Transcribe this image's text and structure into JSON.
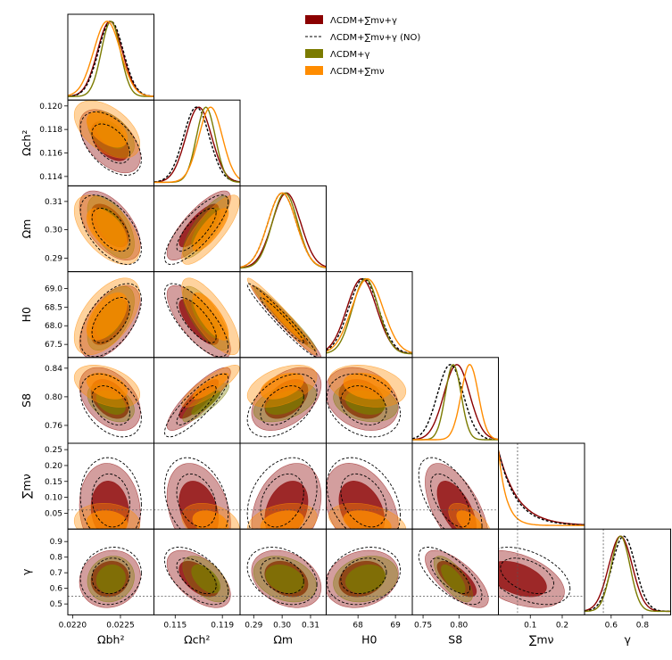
{
  "chart_data": {
    "type": "corner_plot",
    "title": "",
    "parameters": [
      {
        "id": "obh2",
        "label": "Ωbh²",
        "range": [
          0.02195,
          0.02285
        ],
        "ticks": [
          0.022,
          0.0225
        ],
        "tick_labels": [
          "0.0220",
          "0.0225"
        ],
        "best": 0.02242
      },
      {
        "id": "och2",
        "label": "Ωch²",
        "range": [
          0.1132,
          0.1205
        ],
        "ticks": [
          0.114,
          0.116,
          0.118,
          0.12
        ],
        "tick_labels": [
          "0.114",
          "0.116",
          "0.118",
          "0.120"
        ],
        "xticks": [
          0.115,
          0.119
        ],
        "xtick_labels": [
          "0.115",
          "0.119"
        ],
        "best": 0.1175
      },
      {
        "id": "om",
        "label": "Ωm",
        "range": [
          0.2852,
          0.3155
        ],
        "ticks": [
          0.29,
          0.3,
          0.31
        ],
        "tick_labels": [
          "0.29",
          "0.30",
          "0.31"
        ],
        "best": 0.3005
      },
      {
        "id": "h0",
        "label": "H0",
        "range": [
          67.15,
          69.45
        ],
        "ticks": [
          67.5,
          68.0,
          68.5,
          69.0
        ],
        "tick_labels": [
          "67.5",
          "68.0",
          "68.5",
          "69.0"
        ],
        "xticks": [
          68,
          69
        ],
        "xtick_labels": [
          "68",
          "69"
        ],
        "best": 68.2
      },
      {
        "id": "s8",
        "label": "S8",
        "range": [
          0.735,
          0.855
        ],
        "ticks": [
          0.76,
          0.8,
          0.84
        ],
        "tick_labels": [
          "0.76",
          "0.80",
          "0.84"
        ],
        "xticks": [
          0.75,
          0.8
        ],
        "xtick_labels": [
          "0.75",
          "0.80"
        ],
        "best": 0.795
      },
      {
        "id": "mnu",
        "label": "∑mν",
        "range": [
          0.0,
          0.27
        ],
        "ticks": [
          0.05,
          0.1,
          0.15,
          0.2,
          0.25
        ],
        "tick_labels": [
          "0.05",
          "0.10",
          "0.15",
          "0.20",
          "0.25"
        ],
        "xticks": [
          0.1,
          0.2
        ],
        "xtick_labels": [
          "0.1",
          "0.2"
        ],
        "best": 0.06,
        "ref_line": 0.06
      },
      {
        "id": "gamma",
        "label": "γ",
        "range": [
          0.43,
          0.98
        ],
        "ticks": [
          0.5,
          0.6,
          0.7,
          0.8,
          0.9
        ],
        "tick_labels": [
          "0.5",
          "0.6",
          "0.7",
          "0.8",
          "0.9"
        ],
        "xticks": [
          0.6,
          0.8
        ],
        "xtick_labels": [
          "0.6",
          "0.8"
        ],
        "best": 0.66,
        "ref_line": 0.55
      }
    ],
    "series": [
      {
        "id": "full",
        "name": "ΛCDM+∑mν+γ",
        "color": "#8b0000",
        "style": "filled",
        "params": [
          "obh2",
          "och2",
          "om",
          "h0",
          "s8",
          "mnu",
          "gamma"
        ],
        "mean": [
          0.02239,
          0.117,
          0.3015,
          68.1,
          0.797,
          0.06,
          0.66
        ],
        "sd": [
          0.00013,
          0.0011,
          0.005,
          0.4,
          0.018,
          0.06,
          0.075
        ]
      },
      {
        "id": "no",
        "name": "ΛCDM+∑mν+γ (NO)",
        "color": "#000000",
        "style": "dashed",
        "params": [
          "obh2",
          "och2",
          "om",
          "h0",
          "s8",
          "mnu",
          "gamma"
        ],
        "mean": [
          0.0224,
          0.1168,
          0.3,
          68.15,
          0.788,
          0.09,
          0.68
        ],
        "sd": [
          0.00013,
          0.0011,
          0.005,
          0.4,
          0.018,
          0.055,
          0.075
        ]
      },
      {
        "id": "gam",
        "name": "ΛCDM+γ",
        "color": "#7b7b00",
        "style": "filled",
        "params": [
          "obh2",
          "och2",
          "om",
          "h0",
          "s8",
          "gamma"
        ],
        "mean": [
          0.0224,
          0.1176,
          0.301,
          68.2,
          0.792,
          null,
          0.66
        ],
        "sd": [
          0.0001,
          0.0008,
          0.0045,
          0.35,
          0.011,
          null,
          0.06
        ]
      },
      {
        "id": "mnuonly",
        "name": "ΛCDM+∑mν",
        "color": "#ff8c00",
        "style": "filled",
        "params": [
          "obh2",
          "och2",
          "om",
          "h0",
          "s8",
          "mnu"
        ],
        "mean": [
          0.02236,
          0.118,
          0.3,
          68.25,
          0.815,
          0.02,
          null
        ],
        "sd": [
          0.00014,
          0.001,
          0.005,
          0.42,
          0.012,
          0.025,
          null
        ]
      }
    ],
    "correlations": {
      "obh2-och2": -0.5,
      "obh2-om": -0.55,
      "obh2-h0": 0.55,
      "obh2-s8": -0.4,
      "obh2-mnu": -0.1,
      "obh2-gamma": 0.1,
      "och2-om": 0.8,
      "och2-h0": -0.75,
      "och2-s8": 0.85,
      "och2-mnu": -0.3,
      "och2-gamma": -0.55,
      "om-h0": -0.97,
      "om-s8": 0.45,
      "om-mnu": 0.3,
      "om-gamma": -0.3,
      "h0-s8": -0.25,
      "h0-mnu": -0.35,
      "h0-gamma": 0.2,
      "s8-mnu": -0.6,
      "s8-gamma": -0.7,
      "mnu-gamma": -0.45
    },
    "legend": {
      "position": "top-right"
    }
  }
}
